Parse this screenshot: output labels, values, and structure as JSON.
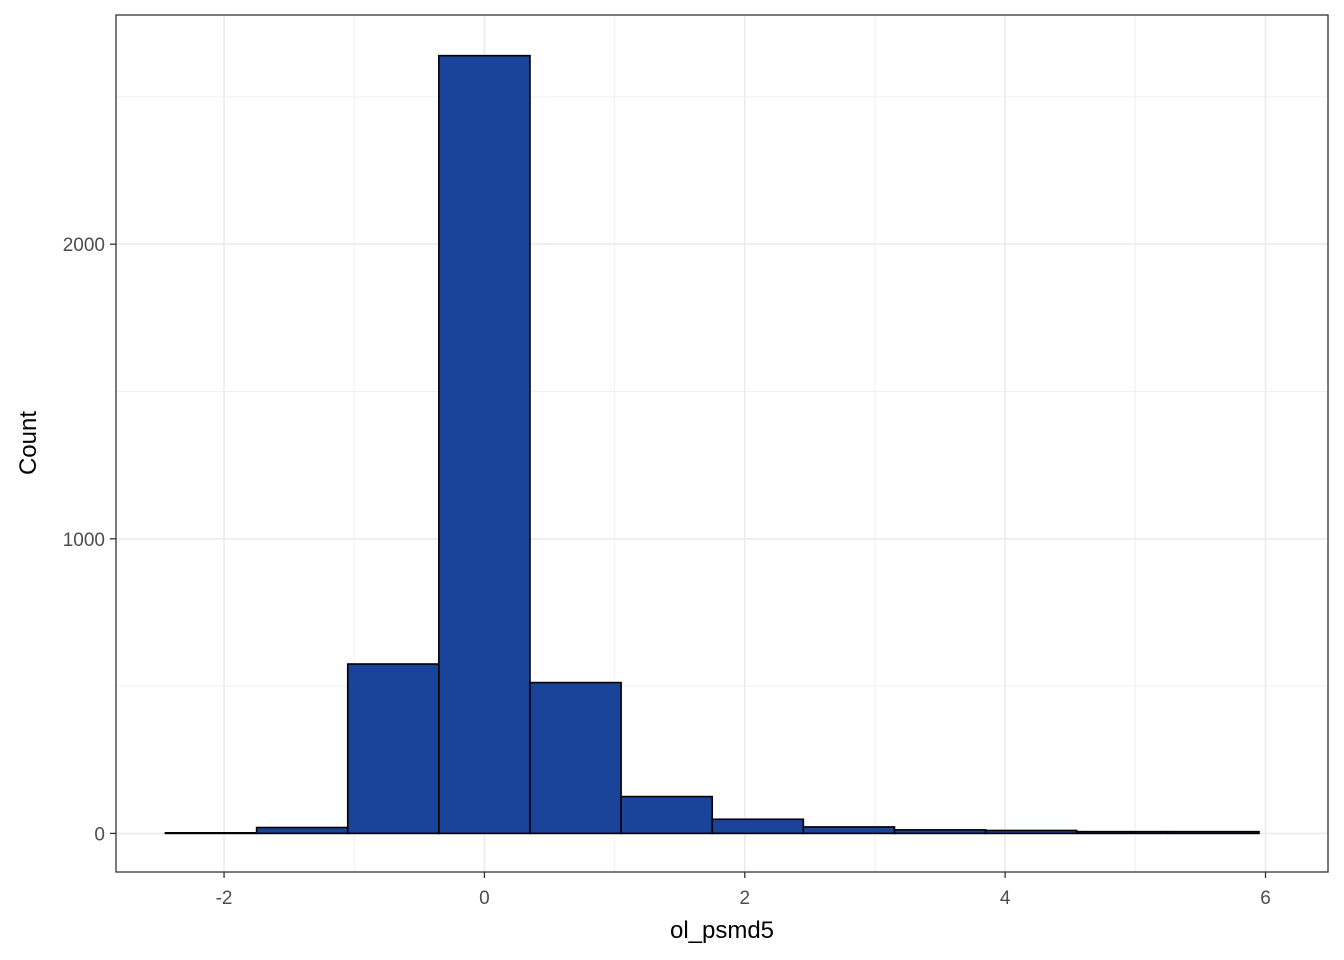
{
  "chart_data": {
    "type": "bar",
    "title": "",
    "xlabel": "ol_psmd5",
    "ylabel": "Count",
    "xlim": [
      -2.83,
      6.48
    ],
    "ylim": [
      -131,
      2778
    ],
    "x_ticks": [
      -2,
      0,
      2,
      4,
      6
    ],
    "y_ticks": [
      0,
      1000,
      2000
    ],
    "grid": true,
    "legend": "none",
    "bar_color": "#1a4499",
    "bar_outline": "#000000",
    "bins": [
      {
        "x0": -2.45,
        "x1": -1.75,
        "count": 2
      },
      {
        "x0": -1.75,
        "x1": -1.05,
        "count": 20
      },
      {
        "x0": -1.05,
        "x1": -0.35,
        "count": 575
      },
      {
        "x0": -0.35,
        "x1": 0.35,
        "count": 2640
      },
      {
        "x0": 0.35,
        "x1": 1.05,
        "count": 512
      },
      {
        "x0": 1.05,
        "x1": 1.75,
        "count": 125
      },
      {
        "x0": 1.75,
        "x1": 2.45,
        "count": 48
      },
      {
        "x0": 2.45,
        "x1": 3.15,
        "count": 22
      },
      {
        "x0": 3.15,
        "x1": 3.85,
        "count": 12
      },
      {
        "x0": 3.85,
        "x1": 4.55,
        "count": 10
      },
      {
        "x0": 4.55,
        "x1": 5.25,
        "count": 6
      },
      {
        "x0": 5.25,
        "x1": 5.95,
        "count": 6
      }
    ]
  }
}
